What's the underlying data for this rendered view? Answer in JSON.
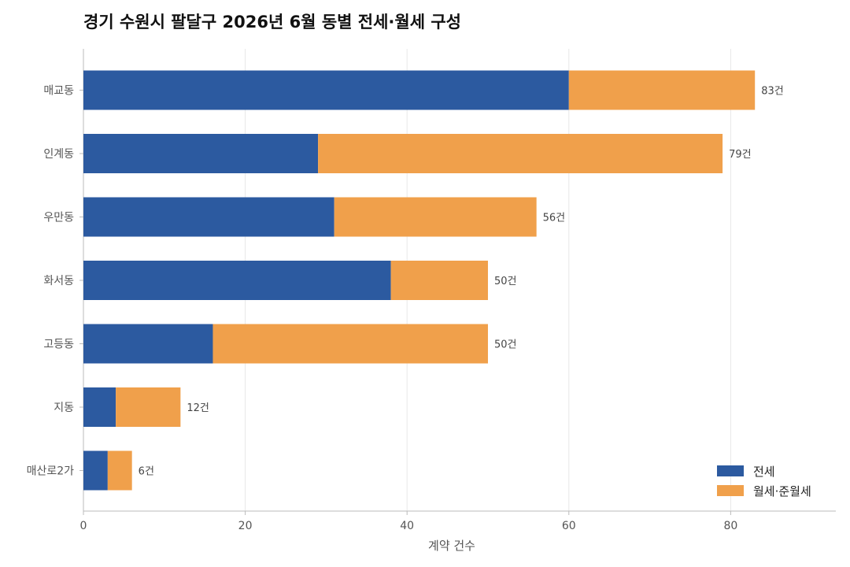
{
  "chart_data": {
    "type": "bar",
    "orientation": "horizontal",
    "stacked": true,
    "title": "경기 수원시 팔달구 2026년 6월 동별 전세·월세 구성",
    "xlabel": "계약 건수",
    "ylabel": "",
    "xlim": [
      0,
      93
    ],
    "xticks": [
      0,
      20,
      40,
      60,
      80
    ],
    "grid": true,
    "legend_position": "bottom-right",
    "categories": [
      "매교동",
      "인계동",
      "우만동",
      "화서동",
      "고등동",
      "지동",
      "매산로2가"
    ],
    "series": [
      {
        "name": "전세",
        "color": "#2c5aa0",
        "values": [
          60,
          29,
          31,
          38,
          16,
          4,
          3
        ]
      },
      {
        "name": "월세·준월세",
        "color": "#f0a04b",
        "values": [
          23,
          50,
          25,
          12,
          34,
          8,
          3
        ]
      }
    ],
    "totals": [
      83,
      79,
      56,
      50,
      50,
      12,
      6
    ],
    "total_labels": [
      "83건",
      "79건",
      "56건",
      "50건",
      "50건",
      "12건",
      "6건"
    ]
  }
}
